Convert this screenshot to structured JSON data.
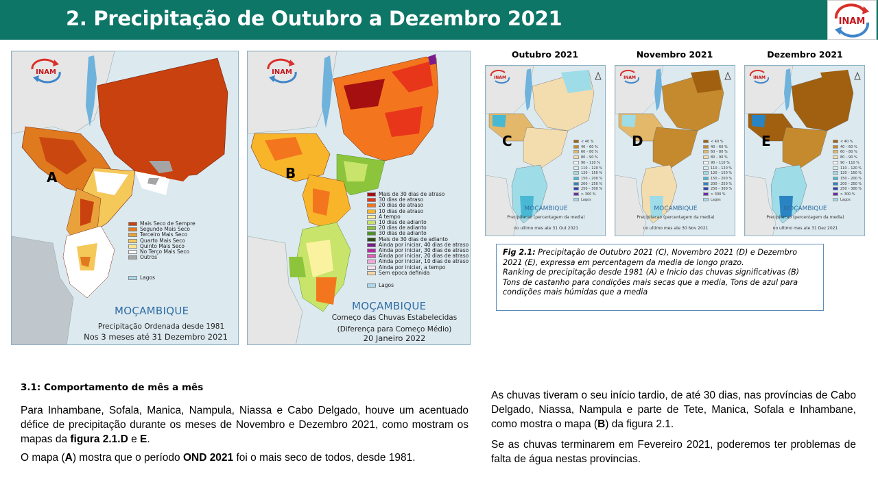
{
  "header": {
    "title": "2. Precipitação de Outubro a Dezembro 2021",
    "logo_text": "INAM"
  },
  "map_a": {
    "letter": "A",
    "logo_text": "INAM",
    "legend": [
      {
        "label": "Mais Seco de Sempre",
        "color": "#c9410e"
      },
      {
        "label": "Segundo Mais Seco",
        "color": "#e07a1f"
      },
      {
        "label": "Terceiro Mais Seco",
        "color": "#e9a23b"
      },
      {
        "label": "Quarto Mais Seco",
        "color": "#f5c85a"
      },
      {
        "label": "Quinto Mais Seco",
        "color": "#fbe58e"
      },
      {
        "label": "No Terço Mais Seco",
        "color": "#ffffff"
      },
      {
        "label": "Outros",
        "color": "#a5a5a5"
      }
    ],
    "lakes_label": "Lagos",
    "country": "MOÇAMBIQUE",
    "subtitle_1": "Precipitação Ordenada desde 1981",
    "subtitle_2": "Nos 3 meses até 31 Dezembro 2021"
  },
  "map_b": {
    "letter": "B",
    "logo_text": "INAM",
    "legend": [
      {
        "label": "Mais de 30 dias de atraso",
        "color": "#a50f0f"
      },
      {
        "label": "30 dias de atraso",
        "color": "#e8361b"
      },
      {
        "label": "20 dias de atraso",
        "color": "#f3761e"
      },
      {
        "label": "10 dias de atraso",
        "color": "#f8b52a"
      },
      {
        "label": "A tempo",
        "color": "#fbf2a0"
      },
      {
        "label": "10 dias de adianto",
        "color": "#c8e46a"
      },
      {
        "label": "20 dias de adianto",
        "color": "#8cc43c"
      },
      {
        "label": "30 dias de adianto",
        "color": "#4e8f2a"
      },
      {
        "label": "Mais de 30 dias de adianto",
        "color": "#2e4f1a"
      },
      {
        "label": "Ainda por iniciar, 40 dias de atraso",
        "color": "#7a1a8c"
      },
      {
        "label": "Ainda por iniciar, 30 dias de atraso",
        "color": "#b5289e"
      },
      {
        "label": "Ainda por iniciar, 20 dias de atraso",
        "color": "#e35fbd"
      },
      {
        "label": "Ainda por iniciar, 10 dias de atraso",
        "color": "#f3a6d8"
      },
      {
        "label": "Ainda por iniciar, a tempo",
        "color": "#fbe0ee"
      },
      {
        "label": "Sem epoca definida",
        "color": "#f6d7a8"
      }
    ],
    "lakes_label": "Lagos",
    "country": "MOÇAMBIQUE",
    "subtitle_1": "Começo das Chuvas Estabelecidas",
    "subtitle_2": "(Diferença para Começo Médio)",
    "subtitle_3": "20 Janeiro 2022"
  },
  "monthly": [
    {
      "month": "Outubro 2021",
      "letter": "C",
      "footer": "no ultimo mes ate 31 Out 2021"
    },
    {
      "month": "Novembro 2021",
      "letter": "D",
      "footer": "no ultimo mes ate 30 Nov 2021"
    },
    {
      "month": "Dezembro 2021",
      "letter": "E",
      "footer": "no ultimo mes ate 31 Dez 2021"
    }
  ],
  "monthly_common": {
    "country": "MOÇAMBIQUE",
    "subtitle": "Precipitacao (percentagem da media)",
    "logo_text": "INAM",
    "legend": [
      {
        "label": "< 40 %",
        "color": "#a0600f"
      },
      {
        "label": "40 – 60 %",
        "color": "#c68a2e"
      },
      {
        "label": "60 – 80 %",
        "color": "#e3b86a"
      },
      {
        "label": "80 – 90 %",
        "color": "#f3dcae"
      },
      {
        "label": "90 – 110 %",
        "color": "#ffffff"
      },
      {
        "label": "110 – 120 %",
        "color": "#d6f0f5"
      },
      {
        "label": "120 – 150 %",
        "color": "#9edce8"
      },
      {
        "label": "150 – 200 %",
        "color": "#49b8d3"
      },
      {
        "label": "200 – 250 %",
        "color": "#2a84c2"
      },
      {
        "label": "250 – 300 %",
        "color": "#2c3fb0"
      },
      {
        "label": "> 300 %",
        "color": "#6a2ca8"
      },
      {
        "label": "Lagos",
        "color": "#a8d8ec"
      }
    ]
  },
  "caption": {
    "fig_label": "Fig 2.1:",
    "line_1": " Precipitação de Outubro 2021 (C), Novembro 2021 (D) e Dezembro 2021 (E), expressa em percentagem da media de longo prazo.",
    "line_2": "Ranking de precipitação desde 1981 (A) e Inicio das chuvas significativas (B)",
    "line_3": "Tons de castanho para condições mais secas que a media, Tons de azul para condições mais húmidas que a media"
  },
  "section": {
    "heading": "3.1: Comportamento de mês a mês",
    "p1_a": "Para Inhambane, Sofala, Manica, Nampula, Niassa e Cabo Delgado, houve um acentuado défice de precipitação durante os meses de Novembro e Dezembro 2021, como mostram os mapas da ",
    "p1_bold_1": "figura 2.1.D",
    "p1_b": " e ",
    "p1_bold_2": "E",
    "p1_c": ".",
    "p2_a": "O mapa (",
    "p2_bold_1": "A",
    "p2_b": ") mostra que o período ",
    "p2_bold_2": "OND 2021",
    "p2_c": " foi o mais seco de todos, desde 1981.",
    "p3_a": "As chuvas tiveram o seu início tardio, de até 30 dias, nas províncias de Cabo Delgado, Niassa, Nampula e parte de Tete, Manica, Sofala e Inhambane, como mostra o mapa (",
    "p3_bold": "B",
    "p3_b": ") da figura 2.1.",
    "p4": "Se as chuvas terminarem em Fevereiro 2021, poderemos ter problemas de falta de água nestas provincias."
  }
}
